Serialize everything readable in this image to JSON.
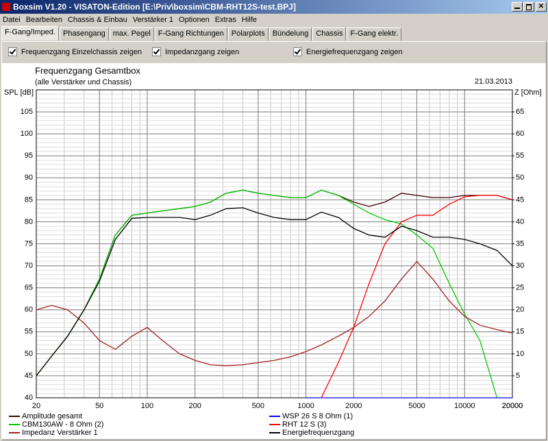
{
  "window": {
    "title": "Boxsim V1.20 - VISATON-Edition [E:\\Priv\\boxsim\\CBM-RHT12S-test.BPJ]"
  },
  "menu": [
    "Datei",
    "Bearbeiten",
    "Chassis & Einbau",
    "Verstärker 1",
    "Optionen",
    "Extras",
    "Hilfe"
  ],
  "tabs": [
    "F-Gang/Imped.",
    "Phasengang",
    "max. Pegel",
    "F-Gang Richtungen",
    "Polarplots",
    "Bündelung",
    "Chassis",
    "F-Gang elektr."
  ],
  "checkboxes": [
    "Frequenzgang Einzelchassis zeigen",
    "Impedanzgang zeigen",
    "Energiefrequenzgang zeigen"
  ],
  "chart_data": {
    "type": "line",
    "title": "Frequenzgang Gesamtbox",
    "subtitle": "(alle Verstärker und Chassis)",
    "date": "21.03.2013",
    "ylabel": "SPL [dB]",
    "y2label": "Z [Ohm]",
    "log_x": true,
    "grid": true,
    "xlim": [
      20,
      20000
    ],
    "xticks": [
      20,
      50,
      100,
      200,
      500,
      1000,
      2000,
      5000,
      10000,
      20000
    ],
    "ylim": [
      40,
      110
    ],
    "yticks": [
      45,
      50,
      55,
      60,
      65,
      70,
      75,
      80,
      85,
      90,
      95,
      100,
      105
    ],
    "y2lim": [
      0,
      70
    ],
    "y2ticks": [
      5,
      10,
      15,
      20,
      25,
      30,
      35,
      40,
      45,
      50,
      55,
      60,
      65
    ],
    "x": [
      20,
      25,
      31.5,
      40,
      50,
      63,
      80,
      100,
      125,
      160,
      200,
      250,
      315,
      400,
      500,
      630,
      800,
      1000,
      1250,
      1600,
      2000,
      2500,
      3150,
      4000,
      5000,
      6300,
      8000,
      10000,
      12500,
      16000,
      20000
    ],
    "series": [
      {
        "name": "Amplitude gesamt",
        "color": "#3a0000",
        "values": [
          45,
          49.5,
          54,
          60,
          67,
          77,
          81.5,
          82,
          82.5,
          83,
          83.5,
          84.5,
          86.5,
          87.2,
          86.5,
          86,
          85.5,
          85.5,
          87.2,
          86,
          84.5,
          83.5,
          84.5,
          86.5,
          86,
          85.5,
          85.5,
          86,
          86,
          86,
          85
        ]
      },
      {
        "name": "CBM130AW - 8 Ohm (2)",
        "color": "#00c800",
        "values": [
          45,
          49.5,
          54,
          60,
          67,
          77,
          81.5,
          82,
          82.5,
          83,
          83.5,
          84.5,
          86.5,
          87.2,
          86.5,
          86,
          85.5,
          85.5,
          87.2,
          86,
          84,
          82,
          80.5,
          79.5,
          77,
          74,
          66,
          59,
          53,
          40,
          null
        ]
      },
      {
        "name": "Impedanz Verstärker 1",
        "color": "#a02020",
        "axis": "y2",
        "values": [
          20,
          21,
          20,
          17,
          13,
          11,
          14,
          16,
          13,
          10,
          8.5,
          7.5,
          7.3,
          7.5,
          8,
          8.5,
          9.3,
          10.5,
          12,
          14,
          16,
          18.5,
          22,
          27,
          31,
          27,
          22,
          18.5,
          16.5,
          15.5,
          14.7
        ]
      },
      {
        "name": "WSP 26 S 8 Ohm (1)",
        "color": "#0000ff",
        "values": [
          null,
          null,
          null,
          null,
          null,
          null,
          null,
          null,
          null,
          null,
          null,
          null,
          null,
          null,
          null,
          null,
          null,
          40,
          40,
          40,
          40,
          40,
          40,
          40,
          40,
          40,
          40,
          40,
          40,
          40,
          40
        ]
      },
      {
        "name": "RHT 12 S (3)",
        "color": "#ff0000",
        "values": [
          null,
          null,
          null,
          null,
          null,
          null,
          null,
          null,
          null,
          null,
          null,
          null,
          null,
          null,
          null,
          null,
          null,
          null,
          40,
          48,
          56,
          66,
          75,
          80,
          81.5,
          81.5,
          84,
          85.7,
          86,
          86,
          85
        ]
      },
      {
        "name": "Energiefrequenzgang",
        "color": "#000000",
        "values": [
          45,
          49.5,
          54,
          60,
          66.5,
          76,
          80.8,
          81,
          81,
          81,
          80.5,
          81.5,
          83,
          83.2,
          82,
          81,
          80.5,
          80.5,
          82.2,
          81,
          78.5,
          77,
          76.5,
          79,
          78,
          76.5,
          76.5,
          76,
          75,
          73.5,
          70
        ]
      }
    ]
  }
}
